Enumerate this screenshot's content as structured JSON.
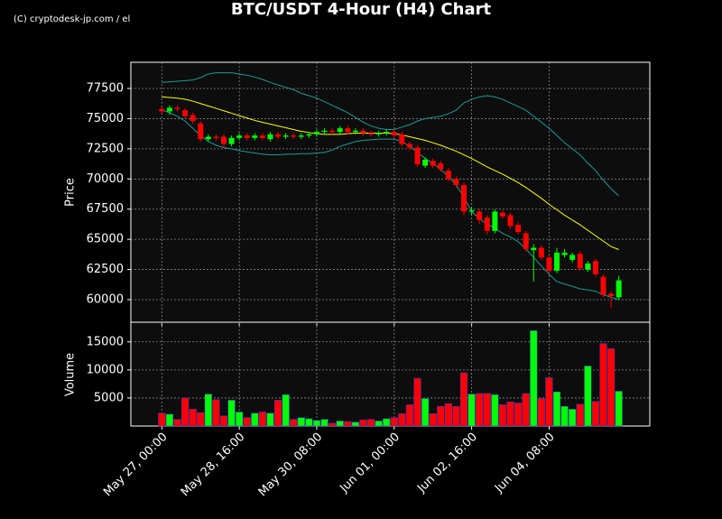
{
  "watermark": "(C) cryptodesk-jp.com / el",
  "chart_data": [
    {
      "type": "candlestick",
      "title": "BTC/USDT 4-Hour (H4) Chart",
      "ylabel": "Price",
      "up_color": "#00ff00",
      "down_color": "#ff0000",
      "grid": true,
      "xlim": [
        -4,
        63
      ],
      "ylim": [
        58130,
        79670
      ],
      "yticks": [
        60000,
        62500,
        65000,
        67500,
        70000,
        72500,
        75000,
        77500
      ],
      "open": [
        75800,
        75600,
        75900,
        75700,
        75300,
        74600,
        73300,
        73500,
        73500,
        72900,
        73400,
        73600,
        73400,
        73600,
        73300,
        73700,
        73500,
        73600,
        73500,
        73600,
        73700,
        73900,
        74000,
        73900,
        74200,
        73900,
        74000,
        73800,
        73700,
        73800,
        73900,
        73700,
        72900,
        72600,
        71100,
        71500,
        71300,
        70700,
        70000,
        69500,
        67300,
        67300,
        66800,
        65700,
        67200,
        67000,
        66200,
        65500,
        64100,
        64300,
        63500,
        62400,
        63700,
        63300,
        63800,
        62500,
        63200,
        61900,
        60500,
        60200
      ],
      "close": [
        75600,
        75900,
        75800,
        75200,
        74800,
        73300,
        73500,
        73400,
        72900,
        73400,
        73600,
        73400,
        73600,
        73400,
        73700,
        73500,
        73600,
        73500,
        73600,
        73700,
        73900,
        74000,
        73900,
        74200,
        73900,
        74000,
        73800,
        73700,
        73800,
        73900,
        73600,
        72900,
        72600,
        71200,
        71600,
        71100,
        70800,
        70000,
        69500,
        67300,
        67400,
        66600,
        65700,
        67300,
        66900,
        66100,
        65600,
        64200,
        64300,
        63500,
        62400,
        63900,
        63900,
        63700,
        62600,
        63000,
        62100,
        60400,
        60300,
        61600
      ],
      "high": [
        76000,
        76100,
        76100,
        75900,
        75500,
        74800,
        73700,
        73700,
        73700,
        73600,
        73800,
        73800,
        73800,
        73800,
        73900,
        73900,
        73800,
        73800,
        73800,
        73900,
        74100,
        74200,
        74200,
        74400,
        74400,
        74200,
        74200,
        74000,
        74000,
        74100,
        74100,
        73900,
        73100,
        72800,
        71800,
        71700,
        71500,
        70900,
        70200,
        69700,
        67700,
        67500,
        67000,
        67500,
        67400,
        67200,
        66400,
        65700,
        64600,
        64500,
        63700,
        64300,
        64200,
        63900,
        64000,
        63200,
        63400,
        62100,
        60700,
        62000
      ],
      "low": [
        75400,
        75300,
        75600,
        75000,
        74600,
        73100,
        73100,
        73200,
        72600,
        72700,
        73200,
        73200,
        73200,
        73200,
        73100,
        73300,
        73300,
        73300,
        73300,
        73400,
        73500,
        73700,
        73700,
        73700,
        73700,
        73700,
        73600,
        73500,
        73500,
        73600,
        73400,
        72700,
        72400,
        71000,
        70900,
        70900,
        70600,
        69800,
        69300,
        67000,
        67000,
        66300,
        65400,
        65500,
        66700,
        65900,
        65400,
        64000,
        61500,
        63300,
        62200,
        62200,
        63500,
        63100,
        62400,
        62300,
        61900,
        60200,
        59300,
        60000
      ],
      "lines": [
        {
          "color": "#ffff00",
          "values": [
            76800,
            76750,
            76700,
            76600,
            76450,
            76250,
            76050,
            75850,
            75650,
            75450,
            75250,
            75050,
            74850,
            74700,
            74550,
            74400,
            74250,
            74100,
            73950,
            73850,
            73750,
            73700,
            73700,
            73700,
            73750,
            73800,
            73800,
            73800,
            73800,
            73800,
            73750,
            73650,
            73500,
            73350,
            73200,
            73000,
            72800,
            72550,
            72300,
            72000,
            71700,
            71350,
            71000,
            70700,
            70400,
            70050,
            69700,
            69300,
            68850,
            68400,
            67900,
            67450,
            67000,
            66600,
            66200,
            65750,
            65300,
            64850,
            64400,
            64150
          ]
        },
        {
          "color": "#1a9a9a",
          "values": [
            78000,
            78050,
            78100,
            78150,
            78200,
            78400,
            78700,
            78800,
            78800,
            78800,
            78700,
            78600,
            78450,
            78250,
            78000,
            77800,
            77600,
            77400,
            77100,
            76900,
            76700,
            76400,
            76100,
            75800,
            75500,
            75100,
            74700,
            74400,
            74200,
            74100,
            74100,
            74300,
            74500,
            74800,
            75000,
            75100,
            75200,
            75400,
            75700,
            76300,
            76600,
            76800,
            76900,
            76800,
            76600,
            76300,
            76000,
            75700,
            75200,
            74700,
            74200,
            73600,
            73000,
            72500,
            72000,
            71300,
            70700,
            69900,
            69200,
            68600
          ]
        },
        {
          "color": "#1a9a9a",
          "values": [
            75700,
            75500,
            75200,
            74800,
            74200,
            73600,
            73100,
            72800,
            72600,
            72500,
            72350,
            72250,
            72150,
            72050,
            72000,
            72000,
            72050,
            72050,
            72100,
            72100,
            72150,
            72200,
            72400,
            72700,
            72900,
            73100,
            73200,
            73250,
            73300,
            73300,
            73300,
            73100,
            72700,
            72200,
            71700,
            71300,
            70800,
            70200,
            69500,
            68500,
            67300,
            66700,
            66300,
            65900,
            65500,
            65200,
            64800,
            64200,
            63500,
            62800,
            62100,
            61500,
            61300,
            61100,
            60900,
            60800,
            60700,
            60400,
            60200,
            60000
          ]
        }
      ]
    },
    {
      "type": "bar",
      "ylabel": "Volume",
      "grid": true,
      "xlim": [
        -4,
        63
      ],
      "ylim": [
        0,
        18500
      ],
      "yticks": [
        5000,
        10000,
        15000
      ],
      "xticks": [
        {
          "value": 0,
          "label": "May 27, 00:00"
        },
        {
          "value": 10,
          "label": "May 28, 16:00"
        },
        {
          "value": 20,
          "label": "May 30, 08:00"
        },
        {
          "value": 30,
          "label": "Jun 01, 00:00"
        },
        {
          "value": 40,
          "label": "Jun 02, 16:00"
        },
        {
          "value": 50,
          "label": "Jun 04, 08:00"
        }
      ],
      "values": [
        2300,
        2100,
        1200,
        5000,
        3000,
        2400,
        5700,
        4700,
        1800,
        4600,
        2500,
        1500,
        2300,
        2500,
        2300,
        4600,
        5600,
        1200,
        1500,
        1300,
        1000,
        1200,
        500,
        900,
        800,
        700,
        1100,
        1200,
        900,
        1300,
        1500,
        2200,
        3800,
        8500,
        4900,
        2200,
        3500,
        4000,
        3500,
        9500,
        5700,
        5800,
        5800,
        5600,
        3800,
        4300,
        4100,
        5800,
        17000,
        4900,
        8600,
        6100,
        3500,
        3000,
        3900,
        10700,
        4400,
        14700,
        13800,
        6200
      ]
    }
  ]
}
